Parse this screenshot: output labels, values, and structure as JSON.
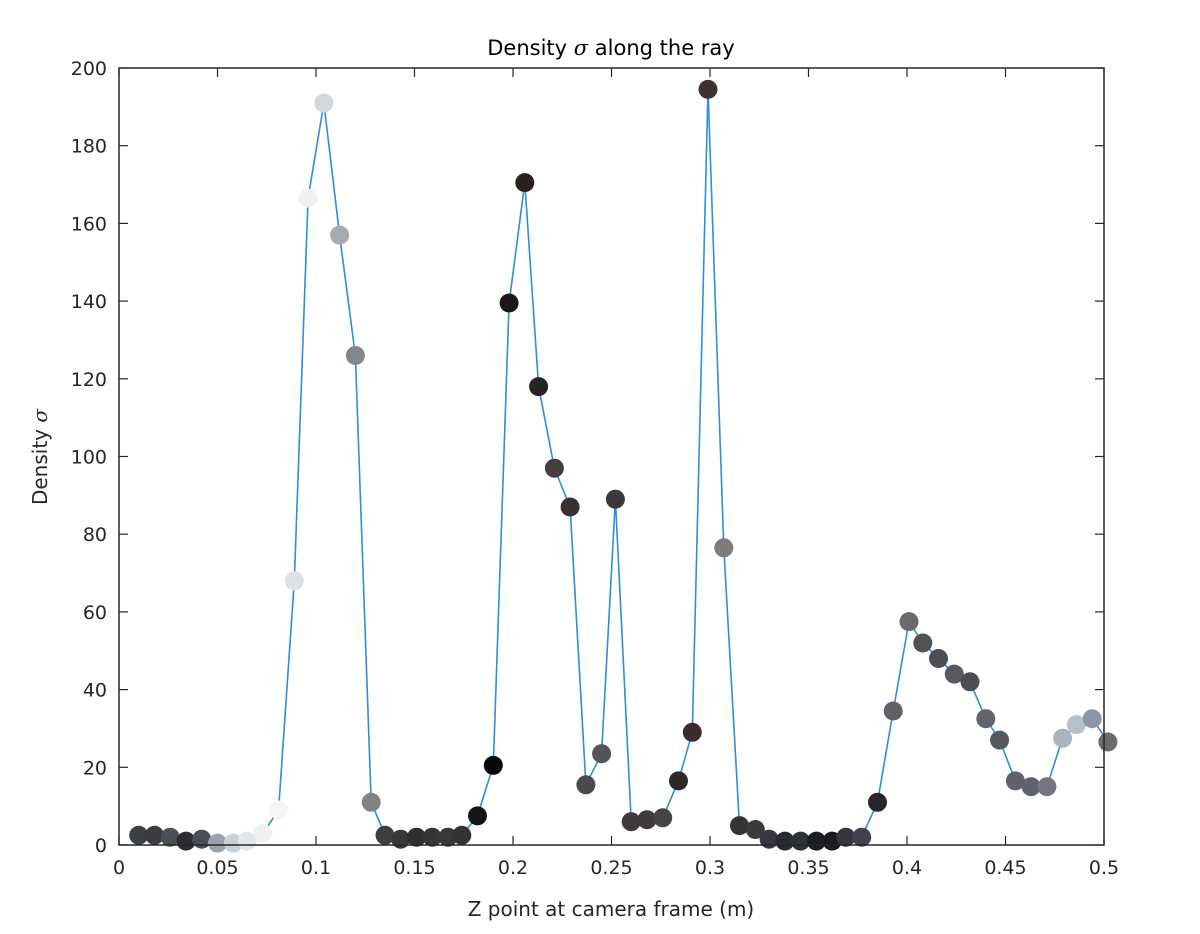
{
  "chart_data": {
    "type": "scatter",
    "title": {
      "prefix": "Density ",
      "symbol": "σ",
      "suffix": " along the ray"
    },
    "xlabel": "Z point at camera frame (m)",
    "ylabel": {
      "prefix": "Density ",
      "symbol": "σ"
    },
    "xlim": [
      0,
      0.5
    ],
    "ylim": [
      0,
      200
    ],
    "x_ticks": [
      0,
      0.05,
      0.1,
      0.15,
      0.2,
      0.25,
      0.3,
      0.35,
      0.4,
      0.45,
      0.5
    ],
    "x_tick_labels": [
      "0",
      "0.05",
      "0.1",
      "0.15",
      "0.2",
      "0.25",
      "0.3",
      "0.35",
      "0.4",
      "0.45",
      "0.5"
    ],
    "y_ticks": [
      0,
      20,
      40,
      60,
      80,
      100,
      120,
      140,
      160,
      180,
      200
    ],
    "y_tick_labels": [
      "0",
      "20",
      "40",
      "60",
      "80",
      "100",
      "120",
      "140",
      "160",
      "180",
      "200"
    ],
    "grid": false,
    "line_color": "#2f8fd3",
    "series": [
      {
        "x": [
          0.01,
          0.018,
          0.026,
          0.034,
          0.042,
          0.05,
          0.058,
          0.065,
          0.073,
          0.081,
          0.089,
          0.096,
          0.104,
          0.112,
          0.12,
          0.128,
          0.135,
          0.143,
          0.151,
          0.159,
          0.167,
          0.174,
          0.182,
          0.19,
          0.198,
          0.206,
          0.213,
          0.221,
          0.229,
          0.237,
          0.245,
          0.252,
          0.26,
          0.268,
          0.276,
          0.284,
          0.291,
          0.299,
          0.307,
          0.315,
          0.323,
          0.33,
          0.338,
          0.346,
          0.354,
          0.362,
          0.369,
          0.377,
          0.385,
          0.393,
          0.401,
          0.408,
          0.416,
          0.424,
          0.432,
          0.44,
          0.447,
          0.455,
          0.463,
          0.471,
          0.479,
          0.486,
          0.494,
          0.502
        ],
        "y": [
          2.5,
          2.5,
          2,
          1,
          1.5,
          0.5,
          0.5,
          1,
          3,
          9,
          68,
          166.5,
          191,
          157,
          126,
          11,
          2.5,
          1.5,
          2,
          2,
          2,
          2.5,
          7.5,
          20.5,
          139.5,
          170.5,
          118,
          97,
          87,
          15.5,
          23.5,
          89,
          6,
          6.5,
          7,
          16.5,
          29,
          194.5,
          76.5,
          5,
          4,
          1.5,
          1,
          1,
          1,
          1,
          2,
          2,
          11,
          34.5,
          57.5,
          52,
          48,
          44,
          42,
          32.5,
          27,
          16.5,
          15,
          15,
          27.5,
          31,
          32.5,
          26.5
        ],
        "colors": [
          "#3c4045",
          "#3b3c3f",
          "#4b4f56",
          "#2c2c33",
          "#4a4d57",
          "#9aa2ae",
          "#c7d1dc",
          "#e3e6e8",
          "#f0f0f0",
          "#f5f5f5",
          "#dde1e4",
          "#eef0f2",
          "#d4d8dc",
          "#a6abaf",
          "#84878b",
          "#828282",
          "#3f3f3f",
          "#373737",
          "#303030",
          "#353535",
          "#393939",
          "#333333",
          "#151515",
          "#080808",
          "#1c1616",
          "#2b1f1f",
          "#2a2324",
          "#453e40",
          "#383131",
          "#4b4a4d",
          "#57535a",
          "#3d383b",
          "#3f3a3b",
          "#3f3b3b",
          "#474445",
          "#2d2728",
          "#3b2d2f",
          "#3a3130",
          "#7d7d7d",
          "#343434",
          "#3b3b3e",
          "#37383f",
          "#2a2a33",
          "#2e3137",
          "#1c1d22",
          "#1a1b20",
          "#37363f",
          "#414150",
          "#28252c",
          "#616168",
          "#69696f",
          "#515156",
          "#4e4e55",
          "#595960",
          "#4d4d55",
          "#63636e",
          "#575760",
          "#606070",
          "#5f6070",
          "#757580",
          "#a8b3c1",
          "#b8c0cd",
          "#8d96a8",
          "#6b6b6e"
        ]
      }
    ]
  }
}
